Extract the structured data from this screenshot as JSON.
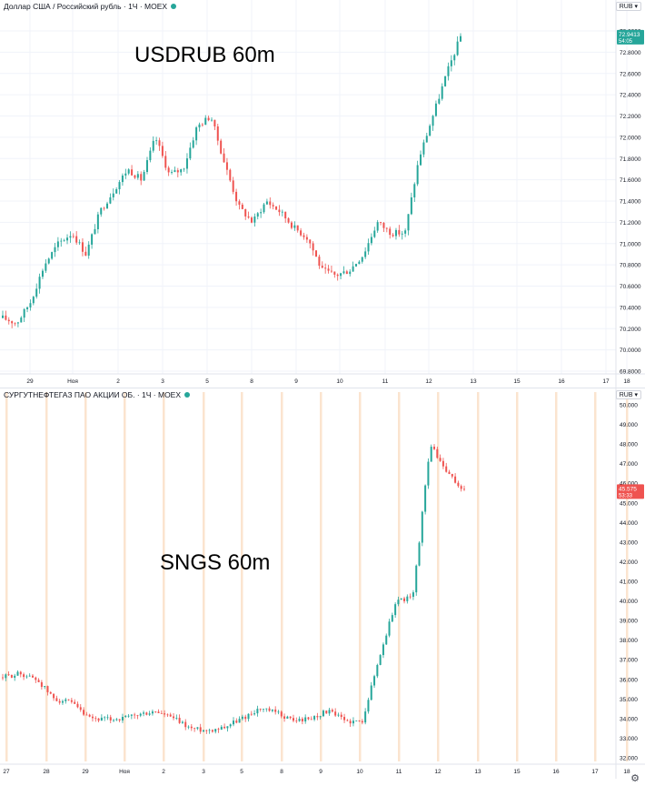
{
  "colors": {
    "up": "#26a69a",
    "down": "#ef5350",
    "grid": "#f0f3fa",
    "highlight": "#fbe4cf",
    "axis_text": "#131722"
  },
  "top": {
    "legend": "Доллар США / Российский рубль · 1Ч · MOEX",
    "status_dot_color": "#26a69a",
    "currency": "RUB ▾",
    "chart_label": "USDRUB 60m",
    "last_price": "72.9413",
    "countdown": "54:05",
    "settings_icon": "gear-icon"
  },
  "bottom": {
    "legend": "СУРГУТНЕФТЕГАЗ ПАО АКЦИИ ОБ. · 1Ч · MOEX",
    "status_dot_color": "#26a69a",
    "currency": "RUB ▾",
    "chart_label": "SNGS 60m",
    "last_price": "45.575",
    "countdown": "53:33",
    "settings_icon": "gear-icon"
  },
  "chart_data": [
    {
      "type": "candlestick",
      "title": "USDRUB 60m",
      "y_ticks": [
        "73.0000",
        "72.8000",
        "72.6000",
        "72.4000",
        "72.2000",
        "72.0000",
        "71.8000",
        "71.6000",
        "71.4000",
        "71.2000",
        "71.0000",
        "70.8000",
        "70.6000",
        "70.4000",
        "70.2000",
        "70.0000",
        "69.8000"
      ],
      "ylim": [
        69.8,
        73.0
      ],
      "x_ticks": [
        "29",
        "Ноя",
        "2",
        "3",
        "5",
        "8",
        "9",
        "10",
        "11",
        "12",
        "13",
        "15",
        "16",
        "17",
        "18"
      ],
      "path_y": [
        70.3,
        70.25,
        70.45,
        70.8,
        71.0,
        71.1,
        70.9,
        71.3,
        71.5,
        71.7,
        71.6,
        72.0,
        71.65,
        71.7,
        72.1,
        72.2,
        71.75,
        71.35,
        71.2,
        71.4,
        71.3,
        71.15,
        71.05,
        70.75,
        70.7,
        70.75,
        70.9,
        71.2,
        71.1,
        71.1,
        71.8,
        72.2,
        72.6,
        72.95
      ],
      "last_price": 72.9413,
      "grid": true
    },
    {
      "type": "candlestick",
      "title": "SNGS 60m",
      "y_ticks": [
        "50.000",
        "49.000",
        "48.000",
        "47.000",
        "46.000",
        "45.000",
        "44.000",
        "43.000",
        "42.000",
        "41.000",
        "40.000",
        "39.000",
        "38.000",
        "37.000",
        "36.000",
        "35.000",
        "34.000",
        "33.000",
        "32.000"
      ],
      "ylim": [
        32.0,
        50.0
      ],
      "x_ticks": [
        "27",
        "28",
        "29",
        "Ноя",
        "2",
        "3",
        "5",
        "8",
        "9",
        "10",
        "11",
        "12",
        "13",
        "15",
        "16",
        "17",
        "18"
      ],
      "path_y": [
        36.1,
        36.3,
        36.0,
        35.0,
        34.8,
        34.0,
        33.95,
        34.0,
        34.2,
        34.35,
        34.0,
        33.5,
        33.4,
        33.6,
        34.0,
        34.5,
        34.3,
        33.9,
        34.0,
        34.4,
        33.9,
        33.8,
        37.0,
        40.0,
        40.2,
        48.0,
        46.5,
        45.6
      ],
      "last_price": 45.575,
      "grid": true
    }
  ]
}
